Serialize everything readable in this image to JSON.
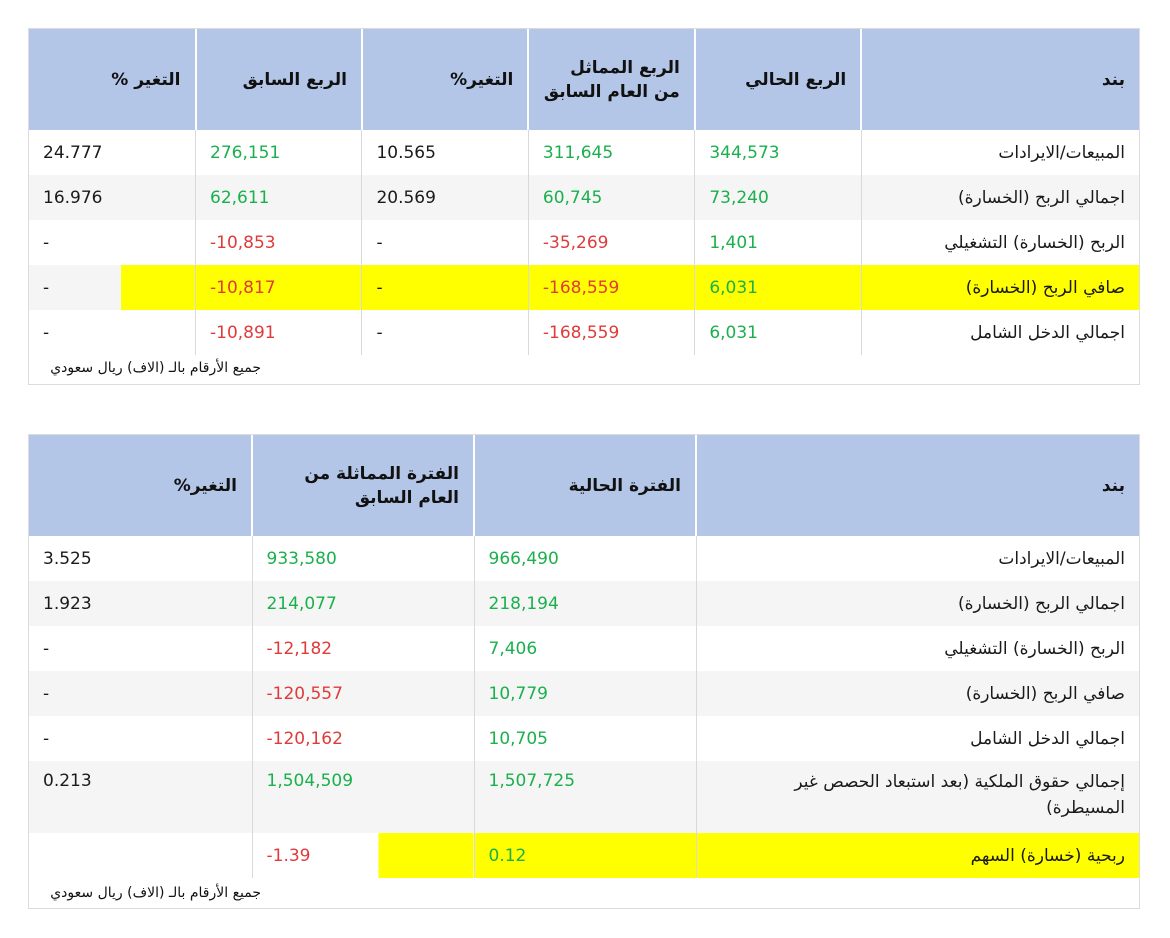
{
  "quarterly": {
    "headers": [
      "بند",
      "الربع الحالي",
      "الربع المماثل من العام السابق",
      "التغير%",
      "الربع السابق",
      "التغير %"
    ],
    "rows": [
      {
        "label": "المبيعات/الايرادات",
        "cur": "344,573",
        "same": "311,645",
        "chg1": "10.565",
        "prev": "276,151",
        "chg2": "24.777"
      },
      {
        "label": "اجمالي الربح (الخسارة)",
        "cur": "73,240",
        "same": "60,745",
        "chg1": "20.569",
        "prev": "62,611",
        "chg2": "16.976"
      },
      {
        "label": "الربح (الخسارة) التشغيلي",
        "cur": "1,401",
        "same": "35,269-",
        "chg1": "-",
        "prev": "10,853-",
        "chg2": "-"
      },
      {
        "label": "صافي الربح (الخسارة)",
        "cur": "6,031",
        "same": "168,559-",
        "chg1": "-",
        "prev": "10,817-",
        "chg2": "-"
      },
      {
        "label": "اجمالي الدخل الشامل",
        "cur": "6,031",
        "same": "168,559-",
        "chg1": "-",
        "prev": "10,891-",
        "chg2": "-"
      }
    ],
    "note": "جميع الأرقام بالـ (الاف) ريال سعودي"
  },
  "period": {
    "headers": [
      "بند",
      "الفترة الحالية",
      "الفترة المماثلة من العام السابق",
      "التغير%"
    ],
    "rows": [
      {
        "label": "المبيعات/الايرادات",
        "cur": "966,490",
        "same": "933,580",
        "chg": "3.525"
      },
      {
        "label": "اجمالي الربح (الخسارة)",
        "cur": "218,194",
        "same": "214,077",
        "chg": "1.923"
      },
      {
        "label": "الربح (الخسارة) التشغيلي",
        "cur": "7,406",
        "same": "12,182-",
        "chg": "-"
      },
      {
        "label": "صافي الربح (الخسارة)",
        "cur": "10,779",
        "same": "120,557-",
        "chg": "-"
      },
      {
        "label": "اجمالي الدخل الشامل",
        "cur": "10,705",
        "same": "120,162-",
        "chg": "-"
      },
      {
        "label": "إجمالي حقوق الملكية (بعد استبعاد الحصص غير المسيطرة)",
        "cur": "1,507,725",
        "same": "1,504,509",
        "chg": "0.213"
      },
      {
        "label": "ربحية (خسارة) السهم",
        "cur": "0.12",
        "same": "1.39-",
        "chg": ""
      }
    ],
    "note": "جميع الأرقام بالـ (الاف) ريال سعودي"
  },
  "colors": {
    "header_bg": "#b4c6e7",
    "positive": "#1ab04c",
    "negative": "#e03a3a",
    "highlight": "#ffff00"
  }
}
